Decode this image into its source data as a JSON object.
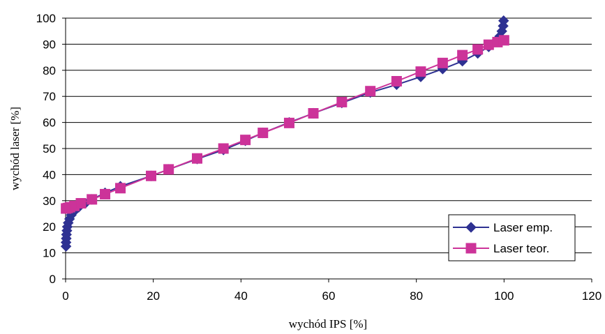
{
  "chart_data": {
    "type": "line",
    "title": "",
    "xlabel": "wychód IPS [%]",
    "ylabel": "wychód laser [%]",
    "xlim": [
      0,
      120
    ],
    "ylim": [
      0,
      100
    ],
    "x_ticks": [
      "0",
      "20",
      "40",
      "60",
      "80",
      "100",
      "120"
    ],
    "y_ticks": [
      "0",
      "10",
      "20",
      "30",
      "40",
      "50",
      "60",
      "70",
      "80",
      "90",
      "100"
    ],
    "grid": "horizontal",
    "legend_position": "bottom-right",
    "series": [
      {
        "name": "Laser emp.",
        "color": "#2e3192",
        "marker": "diamond",
        "points": [
          [
            0.1,
            12.5
          ],
          [
            0.1,
            14
          ],
          [
            0.15,
            15.5
          ],
          [
            0.2,
            17
          ],
          [
            0.3,
            18.5
          ],
          [
            0.4,
            20
          ],
          [
            0.6,
            21.5
          ],
          [
            0.9,
            23
          ],
          [
            1.3,
            24.5
          ],
          [
            2,
            26
          ],
          [
            3,
            27.5
          ],
          [
            4.5,
            29
          ],
          [
            6,
            30.5
          ],
          [
            9,
            33
          ],
          [
            12.5,
            35.5
          ],
          [
            19.5,
            39.5
          ],
          [
            23.5,
            42
          ],
          [
            30,
            46
          ],
          [
            36,
            49.5
          ],
          [
            41,
            53
          ],
          [
            45,
            56
          ],
          [
            51,
            60
          ],
          [
            56.5,
            63.5
          ],
          [
            63,
            67.5
          ],
          [
            69.5,
            71.5
          ],
          [
            75.5,
            74.5
          ],
          [
            81,
            77.5
          ],
          [
            86,
            80.5
          ],
          [
            90.5,
            83.5
          ],
          [
            94,
            86.5
          ],
          [
            96.5,
            89
          ],
          [
            98,
            91
          ],
          [
            99,
            93
          ],
          [
            99.5,
            95
          ],
          [
            99.8,
            97
          ],
          [
            99.9,
            99
          ]
        ]
      },
      {
        "name": "Laser teor.",
        "color": "#cc3399",
        "marker": "square",
        "points": [
          [
            0.1,
            27
          ],
          [
            0.5,
            27.2
          ],
          [
            1,
            27.5
          ],
          [
            2,
            28
          ],
          [
            3.5,
            29
          ],
          [
            6,
            30.5
          ],
          [
            9,
            32.5
          ],
          [
            12.5,
            34.8
          ],
          [
            19.5,
            39.5
          ],
          [
            23.5,
            42
          ],
          [
            30,
            46.2
          ],
          [
            36,
            50
          ],
          [
            41,
            53.3
          ],
          [
            45,
            56
          ],
          [
            51,
            59.8
          ],
          [
            56.5,
            63.5
          ],
          [
            63,
            67.8
          ],
          [
            69.5,
            72
          ],
          [
            75.5,
            75.8
          ],
          [
            81,
            79.5
          ],
          [
            86,
            82.8
          ],
          [
            90.5,
            85.8
          ],
          [
            94,
            88
          ],
          [
            96.5,
            89.8
          ],
          [
            98.5,
            90.8
          ],
          [
            100,
            91.5
          ]
        ]
      }
    ]
  }
}
